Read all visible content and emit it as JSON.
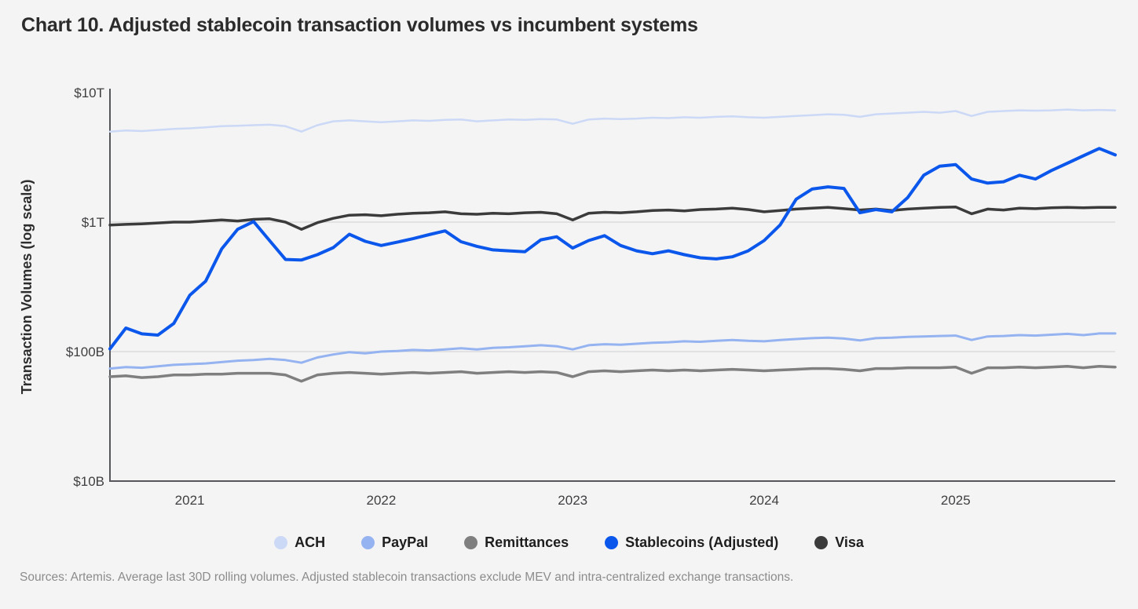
{
  "page": {
    "background": "#f4f4f5"
  },
  "header": {
    "title": "Chart 10. Adjusted stablecoin transaction volumes vs incumbent systems"
  },
  "footer": {
    "source_note": "Sources: Artemis. Average last 30D rolling volumes. Adjusted stablecoin transactions exclude MEV and intra-centralized exchange transactions."
  },
  "chart_data": {
    "type": "line",
    "title": "Chart 10. Adjusted stablecoin transaction volumes vs incumbent systems",
    "xlabel": "",
    "ylabel": "Transaction Volumes (log scale)",
    "y_scale": "log10",
    "unit": "USD billions",
    "ylim_billions": [
      10,
      10000
    ],
    "y_ticks": [
      {
        "label": "$10T",
        "value_billions": 10000
      },
      {
        "label": "$1T",
        "value_billions": 1000
      },
      {
        "label": "$100B",
        "value_billions": 100
      },
      {
        "label": "$10B",
        "value_billions": 10
      }
    ],
    "gridlines_at_billions": [
      1000,
      100
    ],
    "x_ticks": [
      "2021",
      "2022",
      "2023",
      "2024",
      "2025"
    ],
    "x_start_month": "2020-08",
    "x_end_month": "2025-11",
    "x_months_per_point": 1,
    "legend_position": "bottom",
    "colors": {
      "grid": "#dcdcde",
      "axis": "#55575a",
      "tick_text": "#3f3f41"
    },
    "series": [
      {
        "name": "ACH",
        "color": "#cbd8f6",
        "stroke_width": 2.5,
        "values_billions": [
          5000,
          5100,
          5050,
          5150,
          5250,
          5300,
          5400,
          5500,
          5550,
          5600,
          5650,
          5500,
          5000,
          5600,
          6000,
          6100,
          6000,
          5900,
          6000,
          6100,
          6050,
          6150,
          6200,
          6000,
          6100,
          6200,
          6150,
          6250,
          6200,
          5750,
          6200,
          6300,
          6250,
          6300,
          6400,
          6350,
          6450,
          6400,
          6500,
          6550,
          6450,
          6400,
          6500,
          6600,
          6700,
          6800,
          6750,
          6500,
          6800,
          6900,
          7000,
          7100,
          7000,
          7200,
          6600,
          7100,
          7200,
          7300,
          7250,
          7300,
          7400,
          7300,
          7350,
          7300
        ]
      },
      {
        "name": "PayPal",
        "color": "#94b3f0",
        "stroke_width": 3,
        "values_billions": [
          74,
          76,
          75,
          77,
          79,
          80,
          81,
          83,
          85,
          86,
          88,
          86,
          82,
          90,
          95,
          99,
          97,
          100,
          101,
          103,
          102,
          104,
          106,
          104,
          107,
          108,
          110,
          112,
          110,
          104,
          112,
          114,
          113,
          115,
          117,
          118,
          120,
          119,
          121,
          123,
          121,
          120,
          123,
          125,
          127,
          128,
          126,
          122,
          127,
          128,
          130,
          131,
          132,
          133,
          123,
          131,
          132,
          134,
          133,
          135,
          137,
          134,
          138,
          138
        ]
      },
      {
        "name": "Remittances",
        "color": "#7f7f7f",
        "stroke_width": 3.5,
        "values_billions": [
          64,
          65,
          63,
          64,
          66,
          66,
          67,
          67,
          68,
          68,
          68,
          66,
          59,
          66,
          68,
          69,
          68,
          67,
          68,
          69,
          68,
          69,
          70,
          68,
          69,
          70,
          69,
          70,
          69,
          64,
          70,
          71,
          70,
          71,
          72,
          71,
          72,
          71,
          72,
          73,
          72,
          71,
          72,
          73,
          74,
          74,
          73,
          71,
          74,
          74,
          75,
          75,
          75,
          76,
          68,
          75,
          75,
          76,
          75,
          76,
          77,
          75,
          77,
          76
        ]
      },
      {
        "name": "Stablecoins (Adjusted)",
        "color": "#0b57ec",
        "stroke_width": 4,
        "values_billions": [
          105,
          152,
          137,
          134,
          165,
          272,
          350,
          620,
          880,
          1010,
          720,
          515,
          510,
          560,
          635,
          805,
          710,
          660,
          700,
          745,
          800,
          855,
          705,
          650,
          610,
          600,
          590,
          730,
          770,
          630,
          720,
          785,
          660,
          600,
          570,
          600,
          560,
          530,
          520,
          540,
          600,
          720,
          950,
          1500,
          1800,
          1870,
          1820,
          1180,
          1250,
          1200,
          1550,
          2300,
          2700,
          2780,
          2150,
          2000,
          2050,
          2300,
          2150,
          2500,
          2850,
          3250,
          3700,
          3300
        ]
      },
      {
        "name": "Visa",
        "color": "#3b3b3b",
        "stroke_width": 3.5,
        "values_billions": [
          950,
          960,
          970,
          985,
          1000,
          1000,
          1020,
          1040,
          1020,
          1050,
          1060,
          1000,
          880,
          990,
          1070,
          1130,
          1140,
          1120,
          1150,
          1170,
          1180,
          1200,
          1160,
          1150,
          1170,
          1160,
          1180,
          1190,
          1160,
          1040,
          1170,
          1190,
          1180,
          1200,
          1230,
          1240,
          1220,
          1250,
          1260,
          1280,
          1250,
          1200,
          1230,
          1260,
          1280,
          1300,
          1270,
          1240,
          1260,
          1230,
          1260,
          1280,
          1300,
          1310,
          1160,
          1260,
          1240,
          1280,
          1270,
          1290,
          1300,
          1290,
          1300,
          1300
        ]
      }
    ],
    "draw_order": [
      0,
      1,
      2,
      4,
      3
    ]
  }
}
